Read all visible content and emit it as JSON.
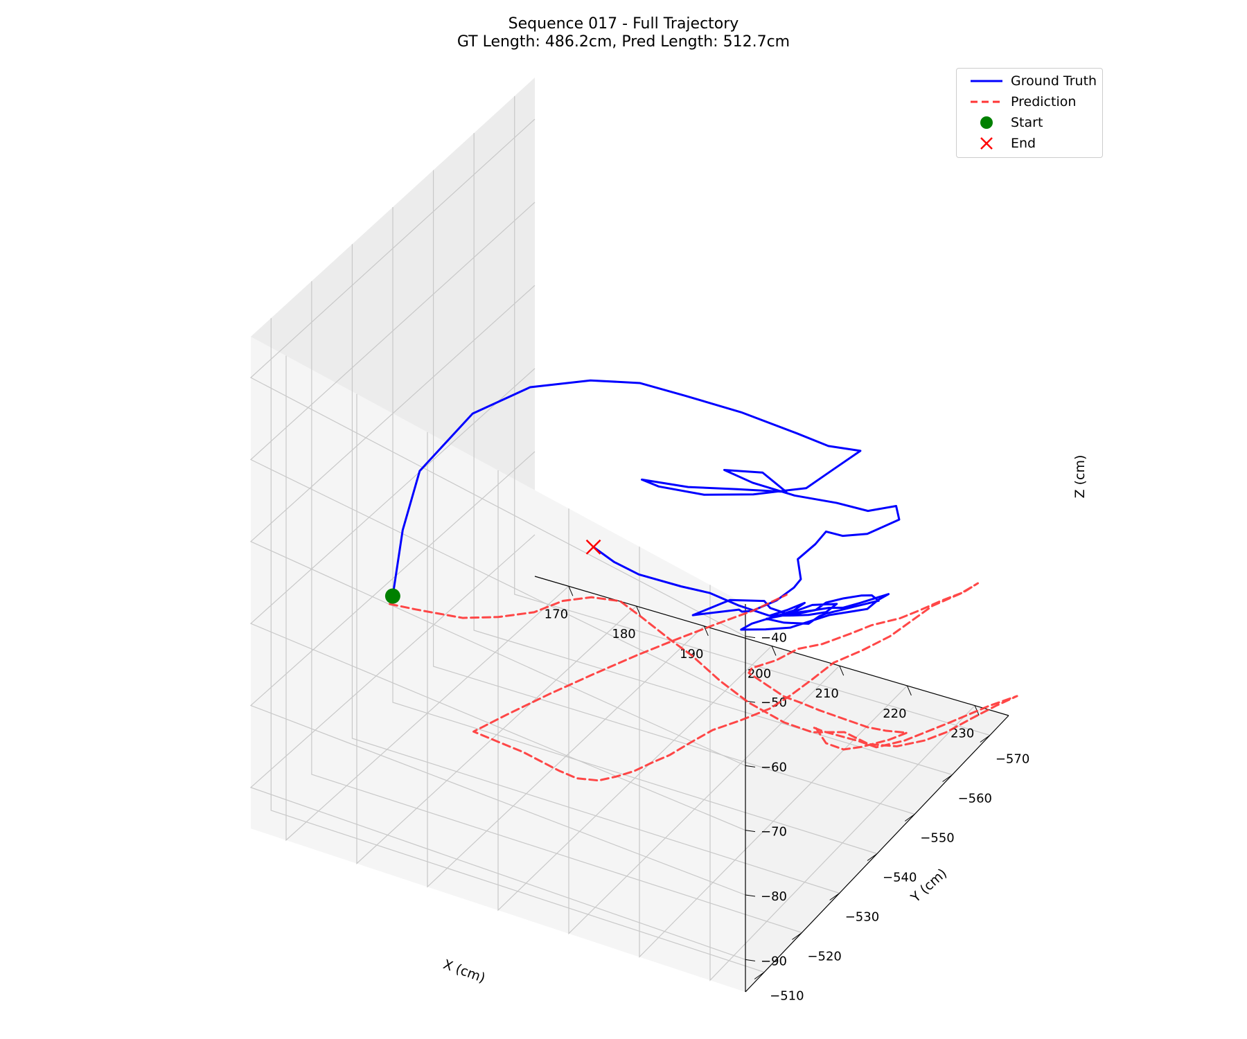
{
  "figure": {
    "title_line1": "Sequence 017 - Full Trajectory",
    "title_line2": "GT Length: 486.2cm, Pred Length: 512.7cm"
  },
  "legend": {
    "items": [
      {
        "label": "Ground Truth",
        "color": "#0000ff",
        "style": "solid"
      },
      {
        "label": "Prediction",
        "color": "#ff3333",
        "style": "dashed"
      },
      {
        "label": "Start",
        "color": "#008000",
        "style": "circle"
      },
      {
        "label": "End",
        "color": "#ff0000",
        "style": "x"
      }
    ]
  },
  "chart_data": {
    "type": "line",
    "projection": "3d",
    "xlabel": "X (cm)",
    "ylabel": "Y (cm)",
    "zlabel": "Z (cm)",
    "x_ticks": [
      "170",
      "180",
      "190",
      "200",
      "210",
      "220",
      "230"
    ],
    "y_ticks": [
      "−510",
      "−520",
      "−530",
      "−540",
      "−550",
      "−560",
      "−570"
    ],
    "z_ticks": [
      "−40",
      "−50",
      "−60",
      "−70",
      "−80",
      "−90"
    ],
    "xlim": [
      165,
      235
    ],
    "ylim": [
      -575,
      -505
    ],
    "zlim": [
      -95,
      -35
    ],
    "grid": true,
    "legend_position": "top-right",
    "series": [
      {
        "name": "Ground Truth",
        "color": "#0000ff",
        "line": "solid",
        "xy_projection": [
          [
            180,
            -514
          ],
          [
            178,
            -520
          ],
          [
            177,
            -526
          ],
          [
            180,
            -534
          ],
          [
            186,
            -538
          ],
          [
            193,
            -541
          ],
          [
            199,
            -543
          ],
          [
            205,
            -544
          ],
          [
            212,
            -546
          ],
          [
            219,
            -548
          ],
          [
            223,
            -549
          ],
          [
            226,
            -552
          ],
          [
            224,
            -548
          ],
          [
            222,
            -545
          ],
          [
            216,
            -542
          ],
          [
            210,
            -540
          ],
          [
            204,
            -539
          ],
          [
            201,
            -540
          ],
          [
            206,
            -543
          ],
          [
            212,
            -545
          ],
          [
            218,
            -547
          ],
          [
            214,
            -548
          ],
          [
            209,
            -547
          ],
          [
            212,
            -549
          ],
          [
            217,
            -551
          ],
          [
            222,
            -553
          ],
          [
            226,
            -554
          ],
          [
            229,
            -556
          ],
          [
            230,
            -555
          ],
          [
            227,
            -552
          ],
          [
            224,
            -551
          ],
          [
            221,
            -552
          ],
          [
            220,
            -551
          ],
          [
            218,
            -550
          ],
          [
            219,
            -549
          ],
          [
            218,
            -549
          ],
          [
            216,
            -548
          ],
          [
            213,
            -547
          ],
          [
            211,
            -548
          ],
          [
            210,
            -549
          ],
          [
            205,
            -546
          ],
          [
            207,
            -552
          ],
          [
            212,
            -552
          ],
          [
            214,
            -550
          ],
          [
            217,
            -549
          ],
          [
            220,
            -550
          ],
          [
            222,
            -551
          ],
          [
            224,
            -551
          ],
          [
            226,
            -552
          ],
          [
            229,
            -554
          ],
          [
            228,
            -553
          ],
          [
            227,
            -552
          ],
          [
            225,
            -552
          ],
          [
            222,
            -551
          ],
          [
            218,
            -548
          ],
          [
            215,
            -547
          ],
          [
            212,
            -546
          ],
          [
            213,
            -547
          ],
          [
            216,
            -548
          ],
          [
            218,
            -549
          ],
          [
            219,
            -550
          ],
          [
            217,
            -549
          ],
          [
            215,
            -548
          ],
          [
            217,
            -550
          ],
          [
            219,
            -551
          ],
          [
            221,
            -552
          ],
          [
            222,
            -553
          ],
          [
            219,
            -552
          ],
          [
            216,
            -550
          ],
          [
            214,
            -549
          ],
          [
            216,
            -550
          ],
          [
            219,
            -551
          ],
          [
            220,
            -552
          ],
          [
            221,
            -552
          ],
          [
            223,
            -553
          ],
          [
            225,
            -554
          ],
          [
            227,
            -555
          ],
          [
            226,
            -555
          ],
          [
            225,
            -554
          ],
          [
            223,
            -553
          ],
          [
            221,
            -552
          ],
          [
            220,
            -551
          ],
          [
            218,
            -550
          ],
          [
            215,
            -548
          ],
          [
            211,
            -547
          ],
          [
            208,
            -545
          ],
          [
            205,
            -543
          ],
          [
            200,
            -541
          ],
          [
            197,
            -540
          ],
          [
            194,
            -540
          ]
        ],
        "z": [
          -65.2,
          -60.5,
          -56.3,
          -51.8,
          -48.1,
          -46.0,
          -45.0,
          -44.8,
          -45.3,
          -46.5,
          -47.2,
          -48.5,
          -49.6,
          -51.0,
          -52.5,
          -53.8,
          -54.5,
          -55.3,
          -56.0,
          -55.1,
          -54.3,
          -53.8,
          -54.8,
          -56.5,
          -57.5,
          -57.8,
          -58.0,
          -57.4,
          -58.3,
          -59.6,
          -60.4,
          -61.5,
          -63.0,
          -65.2,
          -67.0,
          -68.5,
          -70.4,
          -72.3,
          -73.6,
          -74.2,
          -75.0,
          -75.5,
          -74.0,
          -73.2,
          -72.4,
          -71.5,
          -71.0,
          -70.3,
          -69.5,
          -68.4,
          -69.0,
          -70.0,
          -71.0,
          -72.0,
          -73.4,
          -74.1,
          -74.6,
          -74.0,
          -72.5,
          -71.6,
          -70.8,
          -71.9,
          -72.8,
          -73.2,
          -73.0,
          -72.5,
          -71.6,
          -72.2,
          -73.5,
          -74.1,
          -74.5,
          -74.2,
          -73.4,
          -72.7,
          -72.0,
          -71.3,
          -70.6,
          -70.2,
          -70.0,
          -70.5,
          -71.2,
          -72.0,
          -72.6,
          -72.8,
          -72.2,
          -70.5,
          -69.6,
          -68.7,
          -67.6,
          -66.7
        ]
      },
      {
        "name": "Prediction",
        "color": "#ff3333",
        "line": "dashed",
        "xy_projection": [
          [
            180,
            -514
          ],
          [
            178,
            -516
          ],
          [
            176,
            -520
          ],
          [
            175,
            -522
          ],
          [
            177,
            -525
          ],
          [
            182,
            -528
          ],
          [
            186,
            -530
          ],
          [
            190,
            -532
          ],
          [
            193,
            -534
          ],
          [
            196,
            -536
          ],
          [
            199,
            -538
          ],
          [
            201,
            -540
          ],
          [
            204,
            -542
          ],
          [
            206,
            -544
          ],
          [
            209,
            -546
          ],
          [
            212,
            -548
          ],
          [
            216,
            -550
          ],
          [
            219,
            -552
          ],
          [
            222,
            -555
          ],
          [
            225,
            -556
          ],
          [
            228,
            -558
          ],
          [
            231,
            -560
          ],
          [
            233,
            -562
          ],
          [
            235,
            -565
          ],
          [
            237,
            -568
          ],
          [
            239,
            -570
          ],
          [
            236,
            -568
          ],
          [
            232,
            -564
          ],
          [
            228,
            -560
          ],
          [
            225,
            -558
          ],
          [
            223,
            -557
          ],
          [
            221,
            -556
          ],
          [
            219,
            -555
          ],
          [
            218,
            -554
          ],
          [
            219,
            -553
          ],
          [
            221,
            -552
          ],
          [
            223,
            -553
          ],
          [
            225,
            -554
          ],
          [
            228,
            -556
          ],
          [
            230,
            -557
          ],
          [
            228,
            -555
          ],
          [
            226,
            -554
          ],
          [
            223,
            -553
          ],
          [
            220,
            -552
          ],
          [
            218,
            -551
          ],
          [
            216,
            -550
          ],
          [
            214,
            -549
          ],
          [
            212,
            -548
          ],
          [
            213,
            -547
          ],
          [
            216,
            -548
          ],
          [
            218,
            -550
          ],
          [
            221,
            -551
          ],
          [
            224,
            -553
          ],
          [
            226,
            -555
          ],
          [
            229,
            -557
          ],
          [
            231,
            -559
          ],
          [
            233,
            -561
          ],
          [
            235,
            -563
          ],
          [
            236,
            -565
          ],
          [
            234,
            -564
          ],
          [
            231,
            -562
          ],
          [
            229,
            -560
          ],
          [
            227,
            -558
          ],
          [
            224,
            -556
          ],
          [
            221,
            -554
          ],
          [
            219,
            -552
          ],
          [
            217,
            -550
          ],
          [
            215,
            -548
          ],
          [
            212,
            -546
          ],
          [
            209,
            -544
          ],
          [
            207,
            -542
          ],
          [
            205,
            -540
          ],
          [
            203,
            -539
          ],
          [
            201,
            -538
          ],
          [
            199,
            -537
          ],
          [
            197,
            -536
          ],
          [
            195,
            -534
          ],
          [
            193,
            -533
          ],
          [
            191,
            -532
          ],
          [
            189,
            -531
          ],
          [
            186,
            -530
          ],
          [
            183,
            -529
          ],
          [
            186,
            -532
          ],
          [
            190,
            -536
          ],
          [
            194,
            -540
          ],
          [
            198,
            -544
          ],
          [
            202,
            -547
          ],
          [
            206,
            -550
          ],
          [
            210,
            -553
          ],
          [
            213,
            -556
          ]
        ],
        "z": [
          -65.2,
          -67.0,
          -69.0,
          -71.8,
          -73.2,
          -74.0,
          -73.5,
          -72.5,
          -71.0,
          -70.5,
          -71.0,
          -73.5,
          -76.5,
          -79.0,
          -82.5,
          -85.5,
          -88.0,
          -89.5,
          -90.2,
          -91.5,
          -92.0,
          -91.4,
          -90.8,
          -90.0,
          -89.3,
          -88.5,
          -89.6,
          -91.0,
          -92.3,
          -93.0,
          -92.2,
          -91.6,
          -91.0,
          -90.2,
          -89.5,
          -90.4,
          -91.2,
          -90.8,
          -90.0,
          -89.0,
          -88.2,
          -87.8,
          -87.0,
          -86.2,
          -85.3,
          -84.5,
          -83.0,
          -81.5,
          -80.0,
          -78.5,
          -77.4,
          -76.3,
          -75.0,
          -74.3,
          -73.5,
          -72.8,
          -72.0,
          -71.4,
          -71.0,
          -72.5,
          -74.0,
          -75.6,
          -77.2,
          -79.0,
          -80.5,
          -82.3,
          -84.0,
          -85.4,
          -86.8,
          -88.0,
          -89.2,
          -90.5,
          -91.6,
          -92.8,
          -93.6,
          -94.2,
          -93.5,
          -92.6,
          -91.5,
          -90.4,
          -89.5,
          -88.6,
          -87.0,
          -85.0,
          -83.2,
          -81.5,
          -79.7,
          -78.0,
          -76.4,
          -75.0
        ]
      }
    ],
    "markers": [
      {
        "name": "Start",
        "color": "#008000",
        "shape": "circle",
        "x": 180,
        "y": -514,
        "z": -65.2
      },
      {
        "name": "End",
        "color": "#ff0000",
        "shape": "x",
        "x": 194,
        "y": -540,
        "z": -66.7
      }
    ]
  }
}
